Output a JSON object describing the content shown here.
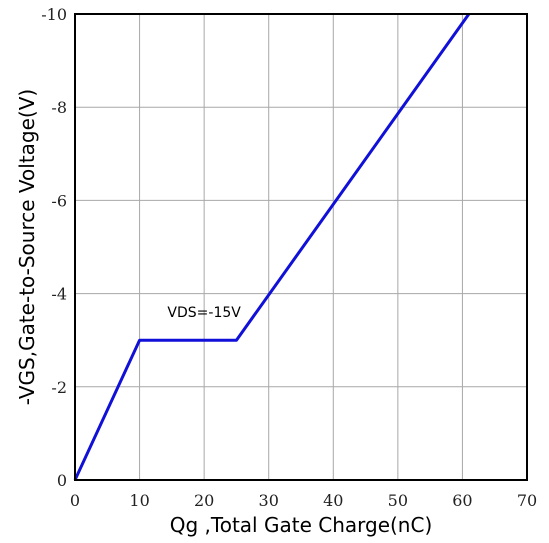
{
  "chart_data": {
    "type": "line",
    "title": "",
    "xlabel": "Qg ,Total Gate Charge(nC)",
    "ylabel": "-VGS,Gate-to-Source Voltage(V)",
    "xlim": [
      0,
      70
    ],
    "ylim": [
      0,
      -10
    ],
    "x_ticks": [
      0,
      10,
      20,
      30,
      40,
      50,
      60,
      70
    ],
    "x_tick_labels": [
      "0",
      "10",
      "20",
      "30",
      "40",
      "50",
      "60",
      "70"
    ],
    "y_ticks": [
      0,
      -2,
      -4,
      -6,
      -8,
      -10
    ],
    "y_tick_labels": [
      "0",
      "-2",
      "-4",
      "-6",
      "-8",
      "-10"
    ],
    "grid": true,
    "series": [
      {
        "color": "#1010d8",
        "x": [
          0,
          10,
          25,
          61
        ],
        "y": [
          0,
          -3,
          -3,
          -10
        ]
      }
    ],
    "annotations": [
      {
        "text": "VDS=-15V",
        "x": 20,
        "y": -3.5
      }
    ]
  }
}
